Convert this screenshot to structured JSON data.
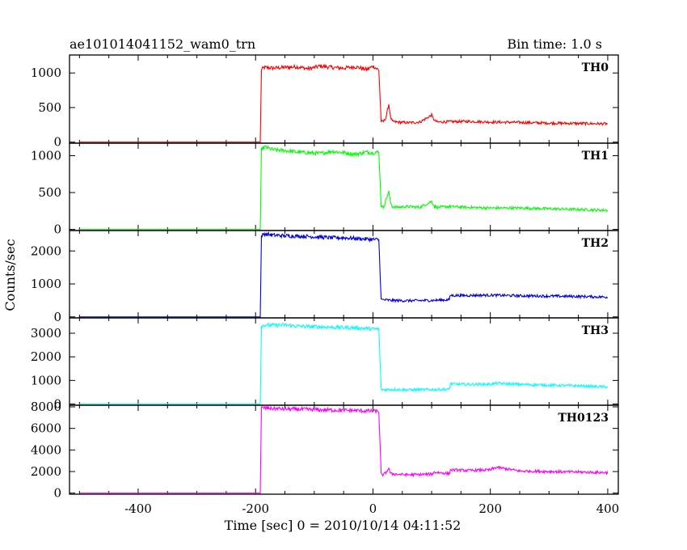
{
  "plot_title": "ae101014041152_wam0_trn",
  "bin_time": "Bin time: 1.0 s",
  "xlabel": "Time [sec] 0 = 2010/10/14 04:11:52",
  "ylabel": "Counts/sec",
  "colors": {
    "TH0": "#ff0000",
    "TH1": "#00ff00",
    "TH2": "#0000dd",
    "TH3": "#00ffff",
    "TH0123": "#ff00ff"
  },
  "chart_data": [
    {
      "type": "line",
      "name": "TH0",
      "color": "#ff0000",
      "xlim": [
        -517,
        418
      ],
      "ylim": [
        -15,
        1260
      ],
      "yticks": [
        0,
        500,
        1000
      ],
      "xticks": [
        -400,
        -200,
        0,
        200,
        400
      ],
      "x": [
        -500,
        -192,
        -190,
        -185,
        -170,
        -150,
        -130,
        -110,
        -90,
        -70,
        -50,
        -30,
        -10,
        0,
        10,
        14,
        18,
        22,
        27,
        30,
        33,
        40,
        60,
        80,
        100,
        105,
        110,
        130,
        160,
        200,
        250,
        300,
        350,
        400
      ],
      "y": [
        0,
        0,
        1050,
        1080,
        1070,
        1080,
        1090,
        1060,
        1100,
        1080,
        1070,
        1090,
        1050,
        1100,
        1040,
        300,
        300,
        350,
        550,
        360,
        300,
        290,
        280,
        290,
        390,
        310,
        290,
        295,
        300,
        290,
        285,
        275,
        270,
        265
      ]
    },
    {
      "type": "line",
      "name": "TH1",
      "color": "#00ff00",
      "xlim": [
        -517,
        418
      ],
      "ylim": [
        -15,
        1170
      ],
      "yticks": [
        0,
        500,
        1000
      ],
      "xticks": [
        -400,
        -200,
        0,
        200,
        400
      ],
      "x": [
        -500,
        -192,
        -190,
        -185,
        -170,
        -150,
        -130,
        -110,
        -90,
        -70,
        -50,
        -30,
        -10,
        0,
        10,
        14,
        18,
        22,
        27,
        30,
        33,
        40,
        60,
        80,
        100,
        105,
        110,
        130,
        160,
        200,
        250,
        300,
        350,
        400
      ],
      "y": [
        0,
        0,
        1080,
        1120,
        1080,
        1070,
        1050,
        1040,
        1030,
        1060,
        1040,
        1020,
        1050,
        1040,
        1050,
        320,
        300,
        400,
        510,
        360,
        310,
        300,
        310,
        300,
        380,
        310,
        300,
        310,
        300,
        290,
        290,
        280,
        270,
        260
      ]
    },
    {
      "type": "line",
      "name": "TH2",
      "color": "#0000dd",
      "xlim": [
        -517,
        418
      ],
      "ylim": [
        -30,
        2620
      ],
      "yticks": [
        0,
        1000,
        2000
      ],
      "xticks": [
        -400,
        -200,
        0,
        200,
        400
      ],
      "x": [
        -500,
        -192,
        -190,
        -185,
        -170,
        -150,
        -130,
        -110,
        -90,
        -70,
        -50,
        -30,
        -10,
        0,
        10,
        14,
        18,
        30,
        60,
        100,
        130,
        132,
        135,
        160,
        200,
        250,
        300,
        350,
        400
      ],
      "y": [
        0,
        0,
        2450,
        2520,
        2480,
        2460,
        2450,
        2440,
        2420,
        2400,
        2400,
        2380,
        2360,
        2350,
        2340,
        520,
        520,
        500,
        490,
        500,
        520,
        660,
        650,
        650,
        660,
        640,
        630,
        620,
        600
      ]
    },
    {
      "type": "line",
      "name": "TH3",
      "color": "#00ffff",
      "xlim": [
        -517,
        418
      ],
      "ylim": [
        -50,
        3650
      ],
      "yticks": [
        0,
        1000,
        2000,
        3000
      ],
      "xticks": [
        -400,
        -200,
        0,
        200,
        400
      ],
      "x": [
        -500,
        -192,
        -190,
        -185,
        -170,
        -150,
        -130,
        -110,
        -90,
        -70,
        -50,
        -30,
        -10,
        0,
        10,
        14,
        18,
        30,
        60,
        100,
        130,
        132,
        135,
        160,
        200,
        210,
        250,
        300,
        350,
        400
      ],
      "y": [
        0,
        0,
        3300,
        3350,
        3330,
        3350,
        3300,
        3280,
        3270,
        3250,
        3240,
        3230,
        3200,
        3180,
        3170,
        620,
        600,
        620,
        600,
        610,
        620,
        860,
        850,
        830,
        840,
        880,
        830,
        800,
        770,
        720
      ]
    },
    {
      "type": "line",
      "name": "TH0123",
      "color": "#ff00ff",
      "xlim": [
        -517,
        418
      ],
      "ylim": [
        -100,
        8150
      ],
      "yticks": [
        0,
        2000,
        4000,
        6000,
        8000
      ],
      "xticks": [
        -400,
        -200,
        0,
        200,
        400
      ],
      "x": [
        -500,
        -192,
        -190,
        -185,
        -170,
        -150,
        -130,
        -110,
        -90,
        -70,
        -50,
        -30,
        -10,
        0,
        10,
        14,
        18,
        22,
        27,
        30,
        40,
        60,
        100,
        105,
        130,
        132,
        135,
        160,
        200,
        210,
        250,
        300,
        350,
        400
      ],
      "y": [
        0,
        0,
        7900,
        7900,
        7850,
        7800,
        7780,
        7760,
        7720,
        7700,
        7680,
        7660,
        7620,
        7600,
        7580,
        1700,
        1700,
        1900,
        2300,
        1800,
        1750,
        1700,
        1750,
        1950,
        1800,
        2150,
        2150,
        2100,
        2150,
        2400,
        2050,
        2000,
        1950,
        1900
      ]
    }
  ]
}
